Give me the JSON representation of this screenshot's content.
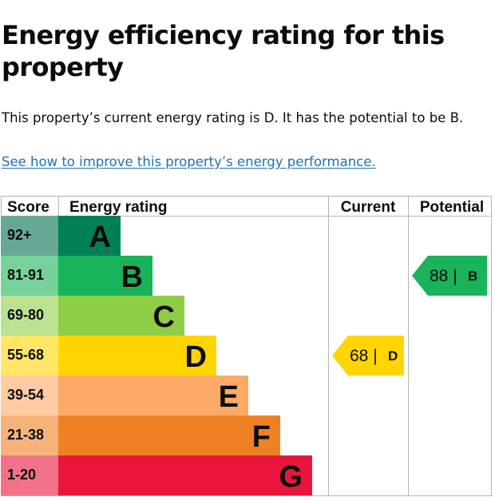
{
  "page": {
    "title": "Energy efficiency rating for this property",
    "summary": "This property’s current energy rating is D. It has the potential to be B.",
    "link_text": "See how to improve this property’s energy performance."
  },
  "chart_data": {
    "type": "bar",
    "title": "Energy efficiency rating for this property",
    "headers": {
      "score": "Score",
      "rating": "Energy rating",
      "current": "Current",
      "potential": "Potential"
    },
    "bands": [
      {
        "letter": "A",
        "score_range": "92+",
        "color": "#008054",
        "score_color": "#66a898"
      },
      {
        "letter": "B",
        "score_range": "81-91",
        "color": "#19b459",
        "score_color": "#75d29b"
      },
      {
        "letter": "C",
        "score_range": "69-80",
        "color": "#8dce46",
        "score_color": "#bbe290"
      },
      {
        "letter": "D",
        "score_range": "55-68",
        "color": "#ffd500",
        "score_color": "#ffe666"
      },
      {
        "letter": "E",
        "score_range": "39-54",
        "color": "#fcaa65",
        "score_color": "#fdcca3"
      },
      {
        "letter": "F",
        "score_range": "21-38",
        "color": "#ef8023",
        "score_color": "#f5b37b"
      },
      {
        "letter": "G",
        "score_range": "1-20",
        "color": "#e9153b",
        "score_color": "#f27389"
      }
    ],
    "current": {
      "value": 68,
      "band": "D",
      "label": "68 |",
      "color": "#ffd500"
    },
    "potential": {
      "value": 88,
      "band": "B",
      "label": "88 |",
      "color": "#19b459"
    }
  }
}
